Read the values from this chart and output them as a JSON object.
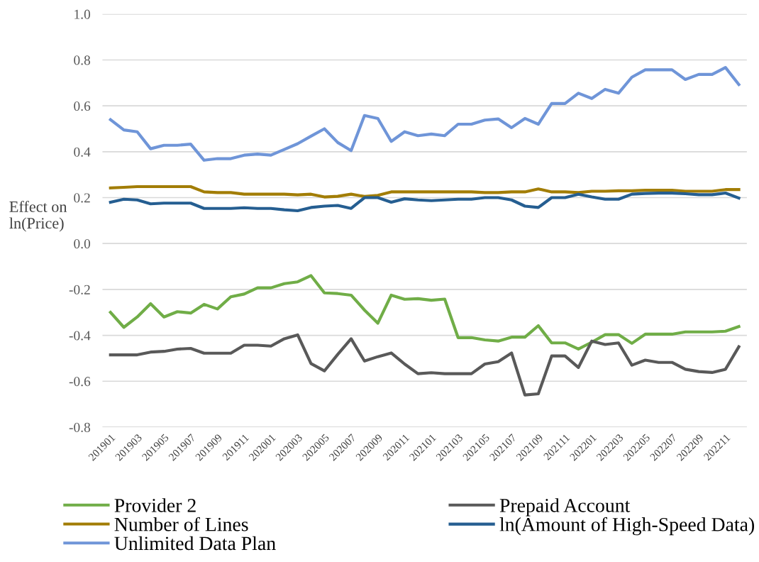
{
  "chart_data": {
    "type": "line",
    "ylabel": "Effect on\nln(Price)",
    "categories": [
      "201901",
      null,
      "201903",
      null,
      "201905",
      null,
      "201907",
      null,
      "201909",
      null,
      "201911",
      null,
      "202001",
      null,
      "202003",
      null,
      "202005",
      null,
      "202007",
      null,
      "202009",
      null,
      "202011",
      null,
      "202101",
      null,
      "202103",
      null,
      "202105",
      null,
      "202107",
      null,
      "202109",
      null,
      "202111",
      null,
      "202201",
      null,
      "202203",
      null,
      "202205",
      null,
      "202207",
      null,
      "202209",
      null,
      "202211",
      null
    ],
    "series": [
      {
        "name": "Provider 2",
        "color": "#70ad47",
        "values": [
          -0.3,
          -0.365,
          -0.32,
          -0.262,
          -0.32,
          -0.297,
          -0.303,
          -0.265,
          -0.285,
          -0.232,
          -0.22,
          -0.193,
          -0.193,
          -0.175,
          -0.167,
          -0.14,
          -0.215,
          -0.218,
          -0.225,
          -0.29,
          -0.347,
          -0.225,
          -0.243,
          -0.24,
          -0.247,
          -0.242,
          -0.41,
          -0.41,
          -0.42,
          -0.425,
          -0.408,
          -0.408,
          -0.358,
          -0.433,
          -0.433,
          -0.46,
          -0.43,
          -0.397,
          -0.397,
          -0.435,
          -0.395,
          -0.395,
          -0.395,
          -0.385,
          -0.385,
          -0.385,
          -0.382,
          -0.362
        ]
      },
      {
        "name": "Prepaid Account",
        "color": "#595959",
        "values": [
          -0.485,
          -0.485,
          -0.485,
          -0.473,
          -0.47,
          -0.46,
          -0.457,
          -0.478,
          -0.478,
          -0.478,
          -0.443,
          -0.443,
          -0.447,
          -0.415,
          -0.398,
          -0.523,
          -0.555,
          -0.483,
          -0.415,
          -0.512,
          -0.493,
          -0.477,
          -0.525,
          -0.567,
          -0.563,
          -0.567,
          -0.567,
          -0.567,
          -0.525,
          -0.515,
          -0.477,
          -0.66,
          -0.655,
          -0.49,
          -0.49,
          -0.54,
          -0.425,
          -0.44,
          -0.433,
          -0.53,
          -0.508,
          -0.518,
          -0.518,
          -0.548,
          -0.558,
          -0.562,
          -0.548,
          -0.45
        ]
      },
      {
        "name": "Number of Lines",
        "color": "#a27d05",
        "values": [
          0.242,
          0.245,
          0.248,
          0.248,
          0.248,
          0.248,
          0.248,
          0.225,
          0.222,
          0.222,
          0.215,
          0.215,
          0.215,
          0.215,
          0.212,
          0.215,
          0.203,
          0.206,
          0.215,
          0.205,
          0.21,
          0.225,
          0.225,
          0.225,
          0.225,
          0.225,
          0.225,
          0.225,
          0.222,
          0.222,
          0.225,
          0.225,
          0.238,
          0.225,
          0.225,
          0.222,
          0.228,
          0.228,
          0.23,
          0.23,
          0.232,
          0.232,
          0.232,
          0.228,
          0.228,
          0.228,
          0.235,
          0.235
        ]
      },
      {
        "name": "ln(Amount of High-Speed Data)",
        "color": "#255e91",
        "values": [
          0.18,
          0.193,
          0.19,
          0.173,
          0.176,
          0.176,
          0.176,
          0.153,
          0.153,
          0.153,
          0.156,
          0.153,
          0.153,
          0.147,
          0.143,
          0.157,
          0.163,
          0.166,
          0.153,
          0.2,
          0.2,
          0.18,
          0.195,
          0.19,
          0.187,
          0.19,
          0.193,
          0.193,
          0.2,
          0.2,
          0.19,
          0.163,
          0.157,
          0.2,
          0.2,
          0.215,
          0.203,
          0.193,
          0.193,
          0.215,
          0.218,
          0.22,
          0.22,
          0.217,
          0.213,
          0.213,
          0.22,
          0.198
        ]
      },
      {
        "name": "Unlimited Data Plan",
        "color": "#6f95d8",
        "values": [
          0.54,
          0.495,
          0.487,
          0.413,
          0.428,
          0.428,
          0.433,
          0.363,
          0.37,
          0.37,
          0.385,
          0.39,
          0.385,
          0.41,
          0.435,
          0.468,
          0.5,
          0.44,
          0.405,
          0.558,
          0.545,
          0.445,
          0.487,
          0.47,
          0.477,
          0.47,
          0.52,
          0.52,
          0.538,
          0.543,
          0.505,
          0.545,
          0.52,
          0.61,
          0.61,
          0.655,
          0.632,
          0.672,
          0.655,
          0.725,
          0.757,
          0.757,
          0.757,
          0.715,
          0.737,
          0.737,
          0.767,
          0.693
        ]
      }
    ],
    "ylim": [
      -0.8,
      1.0
    ],
    "yticks": [
      {
        "value": -0.8,
        "label": "-0.8"
      },
      {
        "value": -0.6,
        "label": "-0.6"
      },
      {
        "value": -0.4,
        "label": "-0.4"
      },
      {
        "value": -0.2,
        "label": "-0.2"
      },
      {
        "value": 0.0,
        "label": "0.0"
      },
      {
        "value": 0.2,
        "label": "0.2"
      },
      {
        "value": 0.4,
        "label": "0.4"
      },
      {
        "value": 0.6,
        "label": "0.6"
      },
      {
        "value": 0.8,
        "label": "0.8"
      },
      {
        "value": 1.0,
        "label": "1.0"
      }
    ],
    "grid": "y",
    "legend": "bottom",
    "marker": "none",
    "line_style": "solid"
  }
}
